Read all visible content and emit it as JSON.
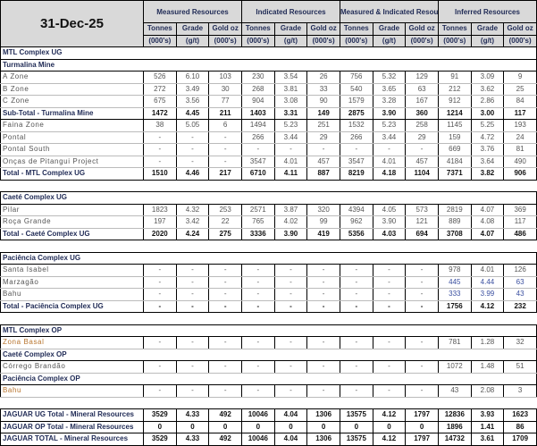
{
  "title": "31-Dec-25",
  "groups": [
    "Measured Resources",
    "Indicated Resources",
    "Measured & Indicated Resources",
    "Inferred Resources"
  ],
  "subheads": [
    "Tonnes",
    "Grade",
    "Gold oz"
  ],
  "units": [
    "(000's)",
    "(g/t)",
    "(000's)"
  ],
  "rows": [
    {
      "type": "section",
      "label": "MTL Complex UG"
    },
    {
      "type": "section",
      "label": "Turmalina Mine"
    },
    {
      "type": "data",
      "label": "A Zone",
      "values": [
        "526",
        "6.10",
        "103",
        "230",
        "3.54",
        "26",
        "756",
        "5.32",
        "129",
        "91",
        "3.09",
        "9"
      ]
    },
    {
      "type": "data",
      "label": "B Zone",
      "values": [
        "272",
        "3.49",
        "30",
        "268",
        "3.81",
        "33",
        "540",
        "3.65",
        "63",
        "212",
        "3.62",
        "25"
      ]
    },
    {
      "type": "data",
      "label": "C Zone",
      "values": [
        "675",
        "3.56",
        "77",
        "904",
        "3.08",
        "90",
        "1579",
        "3.28",
        "167",
        "912",
        "2.86",
        "84"
      ]
    },
    {
      "type": "bold",
      "label": "Sub-Total - Turmalina Mine",
      "values": [
        "1472",
        "4.45",
        "211",
        "1403",
        "3.31",
        "149",
        "2875",
        "3.90",
        "360",
        "1214",
        "3.00",
        "117"
      ]
    },
    {
      "type": "data",
      "label": "Faina Zone",
      "values": [
        "38",
        "5.05",
        "6",
        "1494",
        "5.23",
        "251",
        "1532",
        "5.23",
        "258",
        "1145",
        "5.25",
        "193"
      ]
    },
    {
      "type": "data",
      "label": "Pontal",
      "values": [
        "-",
        "-",
        "-",
        "266",
        "3.44",
        "29",
        "266",
        "3.44",
        "29",
        "159",
        "4.72",
        "24"
      ]
    },
    {
      "type": "data",
      "label": "Pontal South",
      "values": [
        "-",
        "-",
        "-",
        "-",
        "-",
        "-",
        "-",
        "-",
        "-",
        "669",
        "3.76",
        "81"
      ]
    },
    {
      "type": "data",
      "label": "Onças de Pitangui Project",
      "values": [
        "-",
        "-",
        "-",
        "3547",
        "4.01",
        "457",
        "3547",
        "4.01",
        "457",
        "4184",
        "3.64",
        "490"
      ]
    },
    {
      "type": "total",
      "label": "Total - MTL Complex UG",
      "values": [
        "1510",
        "4.46",
        "217",
        "6710",
        "4.11",
        "887",
        "8219",
        "4.18",
        "1104",
        "7371",
        "3.82",
        "906"
      ]
    },
    {
      "type": "spacer"
    },
    {
      "type": "section",
      "label": "Caeté Complex UG"
    },
    {
      "type": "data",
      "label": "Pilar",
      "values": [
        "1823",
        "4.32",
        "253",
        "2571",
        "3.87",
        "320",
        "4394",
        "4.05",
        "573",
        "2819",
        "4.07",
        "369"
      ]
    },
    {
      "type": "data",
      "label": "Roça Grande",
      "values": [
        "197",
        "3.42",
        "22",
        "765",
        "4.02",
        "99",
        "962",
        "3.90",
        "121",
        "889",
        "4.08",
        "117"
      ]
    },
    {
      "type": "total",
      "label": "Total - Caeté Complex UG",
      "values": [
        "2020",
        "4.24",
        "275",
        "3336",
        "3.90",
        "419",
        "5356",
        "4.03",
        "694",
        "3708",
        "4.07",
        "486"
      ]
    },
    {
      "type": "spacer"
    },
    {
      "type": "section",
      "label": "Paciência Complex UG"
    },
    {
      "type": "data",
      "label": "Santa Isabel",
      "values": [
        "-",
        "-",
        "-",
        "-",
        "-",
        "-",
        "-",
        "-",
        "-",
        "978",
        "4.01",
        "126"
      ]
    },
    {
      "type": "data",
      "label": "Marzagão",
      "values": [
        "-",
        "-",
        "-",
        "-",
        "-",
        "-",
        "-",
        "-",
        "-",
        "445",
        "4.44",
        "63"
      ],
      "accent": "blue"
    },
    {
      "type": "data",
      "label": "Bahu",
      "values": [
        "-",
        "-",
        "-",
        "-",
        "-",
        "-",
        "-",
        "-",
        "-",
        "333",
        "3.99",
        "43"
      ],
      "accent": "blue"
    },
    {
      "type": "total",
      "label": "Total - Paciência Complex UG",
      "values": [
        "-",
        "-",
        "-",
        "-",
        "-",
        "-",
        "-",
        "-",
        "-",
        "1756",
        "4.12",
        "232"
      ]
    },
    {
      "type": "spacer"
    },
    {
      "type": "section",
      "label": "MTL Complex OP"
    },
    {
      "type": "data",
      "label": "Zona Basal",
      "values": [
        "-",
        "-",
        "-",
        "-",
        "-",
        "-",
        "-",
        "-",
        "-",
        "781",
        "1.28",
        "32"
      ],
      "accent": "orange"
    },
    {
      "type": "section",
      "label": "Caeté Complex OP"
    },
    {
      "type": "data",
      "label": "Córrego Brandão",
      "values": [
        "-",
        "-",
        "-",
        "-",
        "-",
        "-",
        "-",
        "-",
        "-",
        "1072",
        "1.48",
        "51"
      ]
    },
    {
      "type": "section",
      "label": "Paciência Complex OP"
    },
    {
      "type": "data",
      "label": "Bahu",
      "values": [
        "-",
        "-",
        "-",
        "-",
        "-",
        "-",
        "-",
        "-",
        "-",
        "43",
        "2.08",
        "3"
      ],
      "accent": "orange"
    },
    {
      "type": "spacer"
    },
    {
      "type": "total",
      "label": "JAGUAR UG Total - Mineral Resources",
      "values": [
        "3529",
        "4.33",
        "492",
        "10046",
        "4.04",
        "1306",
        "13575",
        "4.12",
        "1797",
        "12836",
        "3.93",
        "1623"
      ]
    },
    {
      "type": "total",
      "label": "JAGUAR OP Total - Mineral Resources",
      "values": [
        "0",
        "0",
        "0",
        "0",
        "0",
        "0",
        "0",
        "0",
        "0",
        "1896",
        "1.41",
        "86"
      ]
    },
    {
      "type": "total",
      "label": "JAGUAR TOTAL - Mineral Resources",
      "values": [
        "3529",
        "4.33",
        "492",
        "10046",
        "4.04",
        "1306",
        "13575",
        "4.12",
        "1797",
        "14732",
        "3.61",
        "1709"
      ]
    }
  ],
  "colors": {
    "header_bg": "#d9d9d9",
    "section_text": "#1f2a55",
    "orange_label": "#b8752f",
    "blue_value": "#3a4fa0"
  }
}
